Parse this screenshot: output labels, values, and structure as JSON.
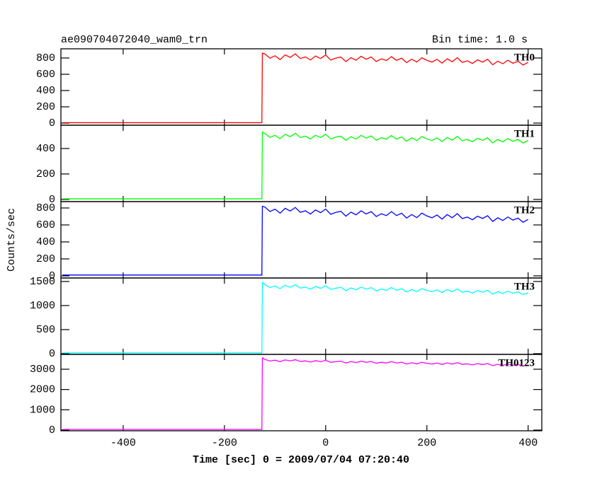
{
  "chart_data": {
    "type": "line",
    "title": "ae090704072040_wam0_trn",
    "subtitle": "Bin time: 1.0 s",
    "x_label": "Time [sec] 0 = 2009/07/04 07:20:40",
    "y_label": "Counts/sec",
    "xlim": [
      -523,
      427
    ],
    "xticks": [
      -400,
      -200,
      0,
      200,
      400
    ],
    "x": [
      -520,
      -126,
      -125,
      -120,
      -110,
      -100,
      -90,
      -80,
      -70,
      -60,
      -50,
      -40,
      -30,
      -20,
      -10,
      0,
      10,
      20,
      30,
      40,
      50,
      60,
      70,
      80,
      90,
      100,
      110,
      120,
      130,
      140,
      150,
      160,
      170,
      180,
      190,
      200,
      210,
      220,
      230,
      240,
      250,
      260,
      270,
      280,
      290,
      300,
      310,
      320,
      330,
      340,
      350,
      360,
      370,
      380,
      390,
      400
    ],
    "series": [
      {
        "name": "TH0",
        "color": "#ff0000",
        "ylim": [
          -26,
          913
        ],
        "yticks": [
          0,
          200,
          400,
          600,
          800
        ],
        "values": [
          5,
          5,
          860,
          850,
          798,
          827,
          780,
          839,
          807,
          851,
          794,
          813,
          776,
          825,
          793,
          837,
          775,
          799,
          812,
          756,
          804,
          773,
          821,
          785,
          813,
          757,
          790,
          769,
          817,
          771,
          799,
          743,
          786,
          750,
          803,
          772,
          750,
          784,
          737,
          791,
          754,
          803,
          746,
          765,
          733,
          777,
          750,
          784,
          717,
          761,
          729,
          773,
          736,
          760,
          713,
          747
        ]
      },
      {
        "name": "TH1",
        "color": "#00ff00",
        "ylim": [
          -17,
          583
        ],
        "yticks": [
          0,
          200,
          400
        ],
        "values": [
          5,
          5,
          530,
          518,
          487,
          504,
          477,
          512,
          493,
          519,
          486,
          497,
          475,
          504,
          486,
          512,
          475,
          489,
          497,
          464,
          493,
          474,
          503,
          482,
          499,
          465,
          485,
          473,
          502,
          474,
          491,
          457,
          484,
          462,
          494,
          475,
          463,
          483,
          455,
          487,
          466,
          495,
          461,
          472,
          453,
          480,
          464,
          484,
          444,
          471,
          452,
          478,
          456,
          471,
          443,
          463
        ]
      },
      {
        "name": "TH2",
        "color": "#0000ff",
        "ylim": [
          -25,
          875
        ],
        "yticks": [
          0,
          200,
          400,
          600,
          800
        ],
        "values": [
          10,
          10,
          820,
          810,
          758,
          785,
          738,
          796,
          764,
          806,
          749,
          767,
          729,
          777,
          745,
          787,
          725,
          748,
          761,
          703,
          751,
          719,
          766,
          729,
          757,
          699,
          732,
          710,
          757,
          710,
          738,
          681,
          723,
          686,
          739,
          706,
          684,
          717,
          669,
          722,
          685,
          733,
          675,
          693,
          661,
          703,
          676,
          709,
          641,
          684,
          652,
          694,
          657,
          680,
          632,
          665
        ]
      },
      {
        "name": "TH3",
        "color": "#00ffff",
        "ylim": [
          -15,
          1573
        ],
        "yticks": [
          0,
          500,
          1000,
          1500
        ],
        "values": [
          15,
          15,
          1480,
          1436,
          1373,
          1407,
          1350,
          1419,
          1381,
          1432,
          1363,
          1384,
          1340,
          1397,
          1358,
          1410,
          1335,
          1362,
          1378,
          1309,
          1366,
          1327,
          1385,
          1340,
          1373,
          1305,
          1344,
          1317,
          1375,
          1318,
          1351,
          1282,
          1334,
          1289,
          1352,
          1314,
          1287,
          1326,
          1270,
          1333,
          1288,
          1345,
          1277,
          1298,
          1259,
          1311,
          1278,
          1317,
          1237,
          1288,
          1249,
          1300,
          1256,
          1283,
          1226,
          1266
        ]
      },
      {
        "name": "TH0123",
        "color": "#ff00ff",
        "ylim": [
          -35,
          3732
        ],
        "yticks": [
          0,
          1000,
          2000,
          3000
        ],
        "values": [
          30,
          30,
          3560,
          3485,
          3405,
          3446,
          3373,
          3460,
          3409,
          3472,
          3385,
          3411,
          3354,
          3424,
          3374,
          3438,
          3342,
          3376,
          3394,
          3306,
          3377,
          3327,
          3398,
          3340,
          3381,
          3294,
          3342,
          3307,
          3378,
          3305,
          3346,
          3258,
          3322,
          3264,
          3342,
          3293,
          3258,
          3307,
          3234,
          3312,
          3255,
          3325,
          3238,
          3264,
          3213,
          3277,
          3234,
          3283,
          3180,
          3243,
          3194,
          3257,
          3200,
          3233,
          3160,
          3208
        ]
      }
    ]
  }
}
